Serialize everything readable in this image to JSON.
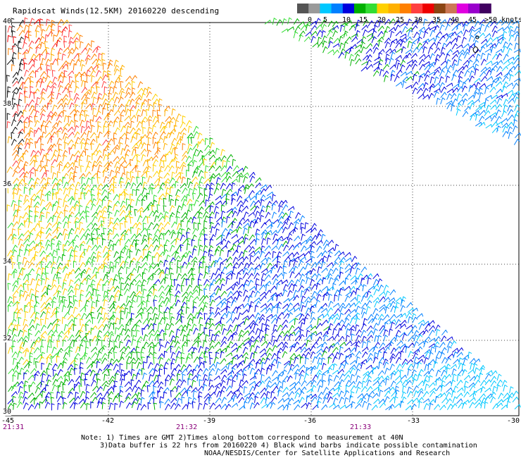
{
  "title": "Rapidscat Winds(12.5KM) 20160220 descending",
  "legend": {
    "colors": [
      "#555555",
      "#9a9a9a",
      "#00c8ff",
      "#0080ff",
      "#0000dd",
      "#00b000",
      "#33dd33",
      "#ffd000",
      "#ffb000",
      "#ff8000",
      "#ff4040",
      "#ee0000",
      "#8b4513",
      "#cc7755",
      "#e000e0",
      "#9900cc",
      "#400060"
    ],
    "labels": [
      "0",
      "5",
      "10",
      "15",
      "20",
      "25",
      "30",
      "35",
      "40",
      "45",
      ">50 knots"
    ]
  },
  "map": {
    "lon_range": [
      -45,
      -30
    ],
    "lat_range": [
      30,
      40
    ],
    "lat_labels": [
      "40",
      "38",
      "36",
      "34",
      "32",
      "30"
    ],
    "lon_labels": [
      "-45",
      "-42",
      "-39",
      "-36",
      "-33",
      "-30"
    ],
    "time_labels": [
      "21:31",
      "21:32",
      "21:33"
    ]
  },
  "notes": {
    "line1": "Note: 1) Times are GMT 2)Times along bottom correspond to measurement at 40N",
    "line2": "3)Data buffer is 22 hrs from 20160220 4) Black wind barbs indicate possible contamination",
    "line3": "NOAA/NESDIS/Center for Satellite Applications and Research"
  }
}
